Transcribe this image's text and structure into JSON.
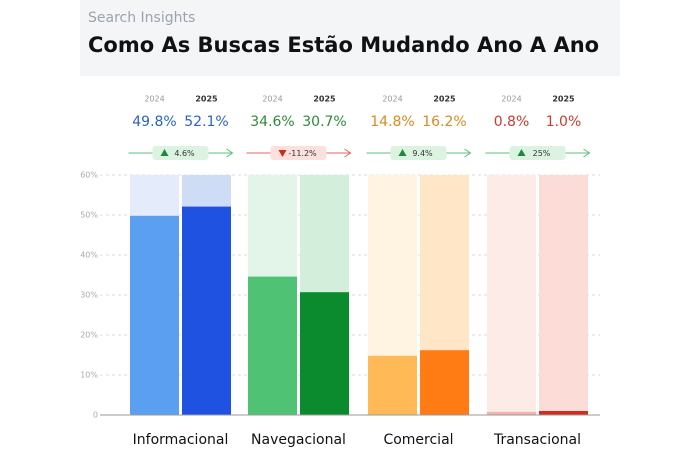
{
  "chart_data": {
    "type": "bar",
    "subtitle": "Search Insights",
    "title": "Como As Buscas Estão Mudando Ano A Ano",
    "categories": [
      "Informacional",
      "Navegacional",
      "Comercial",
      "Transacional"
    ],
    "series": [
      {
        "name": "2024",
        "values": [
          49.8,
          34.6,
          14.8,
          0.8
        ],
        "value_labels": [
          "49.8%",
          "34.6%",
          "14.8%",
          "0.8%"
        ],
        "colors": [
          "#5a9ff0",
          "#4fc274",
          "#ffb957",
          "#f3b2aa"
        ],
        "track_colors": [
          "#e4ebfa",
          "#e3f5e8",
          "#fff3e2",
          "#fdebe8"
        ]
      },
      {
        "name": "2025",
        "values": [
          52.1,
          30.7,
          16.2,
          1.0
        ],
        "value_labels": [
          "52.1%",
          "30.7%",
          "16.2%",
          "1.0%"
        ],
        "colors": [
          "#1f52e0",
          "#0b8a2e",
          "#ff7c14",
          "#d42b1c"
        ],
        "track_colors": [
          "#cfdcf6",
          "#d3efdb",
          "#ffe6c6",
          "#fbdcd6"
        ]
      }
    ],
    "label_colors": [
      "#2a63c8",
      "#2f8a3c",
      "#db8a1e",
      "#cf3b2a"
    ],
    "changes": [
      4.6,
      -11.2,
      9.4,
      25
    ],
    "change_labels": [
      "4.6%",
      "-11.2%",
      "9.4%",
      "25%"
    ],
    "ylim": [
      0,
      60
    ],
    "yticks": [
      0,
      {
        "value": 10,
        "label": "10%"
      },
      {
        "value": 20,
        "label": "20%"
      },
      {
        "value": 30,
        "label": "30%"
      },
      {
        "value": 40,
        "label": "40%"
      },
      {
        "value": 50,
        "label": "50%"
      },
      {
        "value": 60,
        "label": "60%"
      }
    ],
    "grid": true
  }
}
